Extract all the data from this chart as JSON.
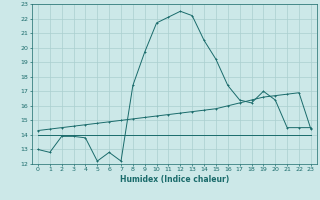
{
  "xlabel": "Humidex (Indice chaleur)",
  "bg_color": "#cce8e8",
  "grid_color": "#aacfcf",
  "line_color": "#1a6b6b",
  "xlim": [
    -0.5,
    23.5
  ],
  "ylim": [
    12,
    23
  ],
  "xticks": [
    0,
    1,
    2,
    3,
    4,
    5,
    6,
    7,
    8,
    9,
    10,
    11,
    12,
    13,
    14,
    15,
    16,
    17,
    18,
    19,
    20,
    21,
    22,
    23
  ],
  "yticks": [
    12,
    13,
    14,
    15,
    16,
    17,
    18,
    19,
    20,
    21,
    22,
    23
  ],
  "line1_x": [
    0,
    1,
    2,
    3,
    4,
    5,
    6,
    7,
    8,
    9,
    10,
    11,
    12,
    13,
    14,
    15,
    16,
    17,
    18,
    19,
    20,
    21,
    22,
    23
  ],
  "line1_y": [
    13.0,
    12.8,
    13.9,
    13.9,
    13.8,
    12.2,
    12.8,
    12.2,
    17.4,
    19.7,
    21.7,
    22.1,
    22.5,
    22.2,
    20.5,
    19.2,
    17.4,
    16.4,
    16.2,
    17.0,
    16.4,
    14.5,
    14.5,
    14.5
  ],
  "line2_x": [
    0,
    1,
    2,
    3,
    4,
    5,
    6,
    7,
    8,
    9,
    10,
    11,
    12,
    13,
    14,
    15,
    16,
    17,
    18,
    19,
    20,
    21,
    22,
    23
  ],
  "line2_y": [
    14.0,
    14.0,
    14.0,
    14.0,
    14.0,
    14.0,
    14.0,
    14.0,
    14.0,
    14.0,
    14.0,
    14.0,
    14.0,
    14.0,
    14.0,
    14.0,
    14.0,
    14.0,
    14.0,
    14.0,
    14.0,
    14.0,
    14.0,
    14.0
  ],
  "line3_x": [
    0,
    1,
    2,
    3,
    4,
    5,
    6,
    7,
    8,
    9,
    10,
    11,
    12,
    13,
    14,
    15,
    16,
    17,
    18,
    19,
    20,
    21,
    22,
    23
  ],
  "line3_y": [
    14.3,
    14.4,
    14.5,
    14.6,
    14.7,
    14.8,
    14.9,
    15.0,
    15.1,
    15.2,
    15.3,
    15.4,
    15.5,
    15.6,
    15.7,
    15.8,
    16.0,
    16.2,
    16.4,
    16.6,
    16.7,
    16.8,
    16.9,
    14.4
  ],
  "tick_fontsize": 4.5,
  "xlabel_fontsize": 5.5
}
